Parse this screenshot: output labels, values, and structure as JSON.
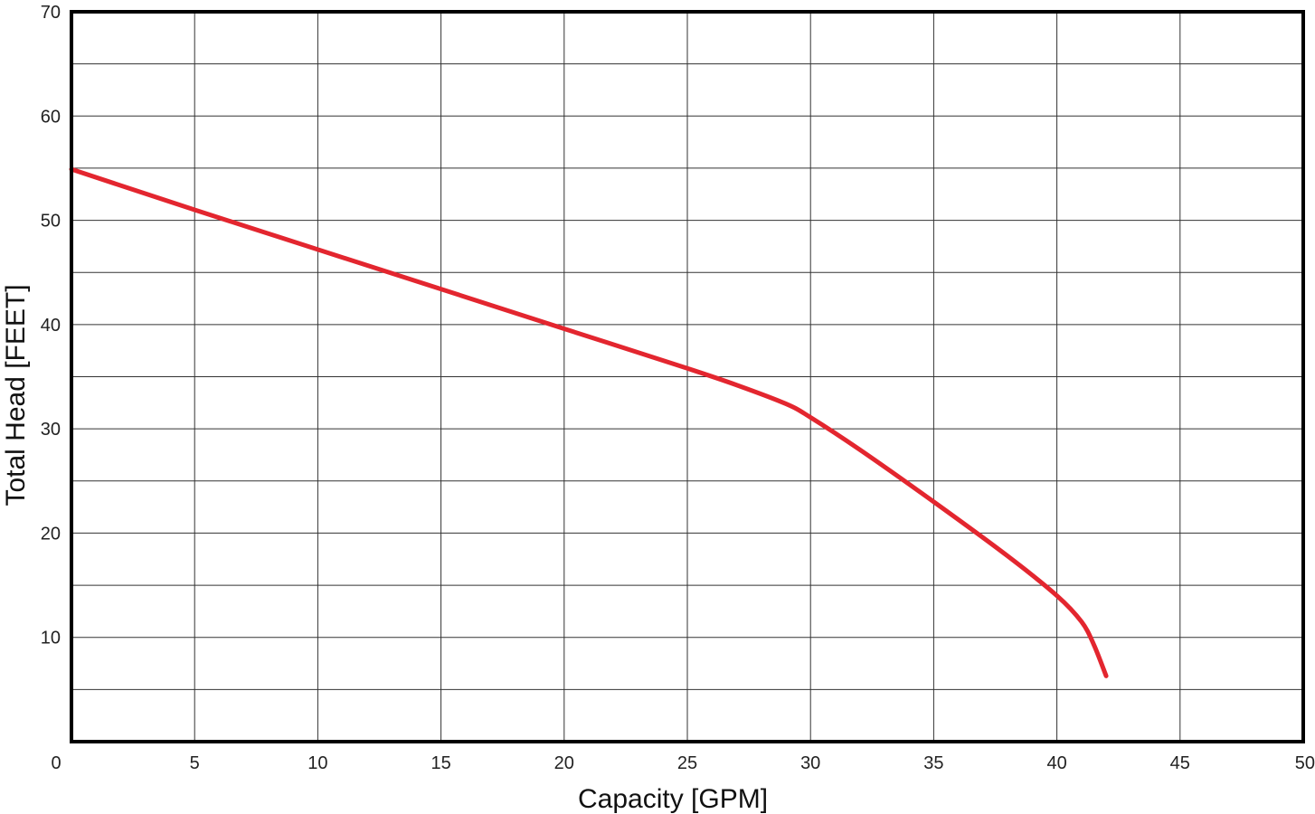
{
  "chart_data": {
    "type": "line",
    "title": "",
    "xlabel": "Capacity [GPM]",
    "ylabel": "Total Head [FEET]",
    "xlim": [
      0,
      50
    ],
    "ylim": [
      0,
      70
    ],
    "x_ticks": [
      0,
      5,
      10,
      15,
      20,
      25,
      30,
      35,
      40,
      45,
      50
    ],
    "x_tick_labels": [
      "0",
      "5",
      "10",
      "15",
      "20",
      "25",
      "30",
      "35",
      "40",
      "45",
      "50"
    ],
    "y_ticks": [
      10,
      20,
      30,
      40,
      50,
      60,
      70
    ],
    "y_tick_labels": [
      "10",
      "20",
      "30",
      "40",
      "50",
      "60",
      "70"
    ],
    "grid": true,
    "grid_x_step": 5,
    "grid_y_step": 5,
    "series": [
      {
        "color": "#e3262f",
        "x": [
          0,
          5,
          10,
          15,
          20,
          25,
          27,
          29,
          30,
          32,
          35,
          38,
          40,
          41,
          41.5,
          42
        ],
        "y": [
          54.9,
          51.0,
          47.2,
          43.4,
          39.6,
          35.8,
          34.2,
          32.4,
          31.1,
          28.0,
          23.0,
          17.8,
          14.0,
          11.5,
          9.3,
          6.3
        ]
      }
    ]
  }
}
